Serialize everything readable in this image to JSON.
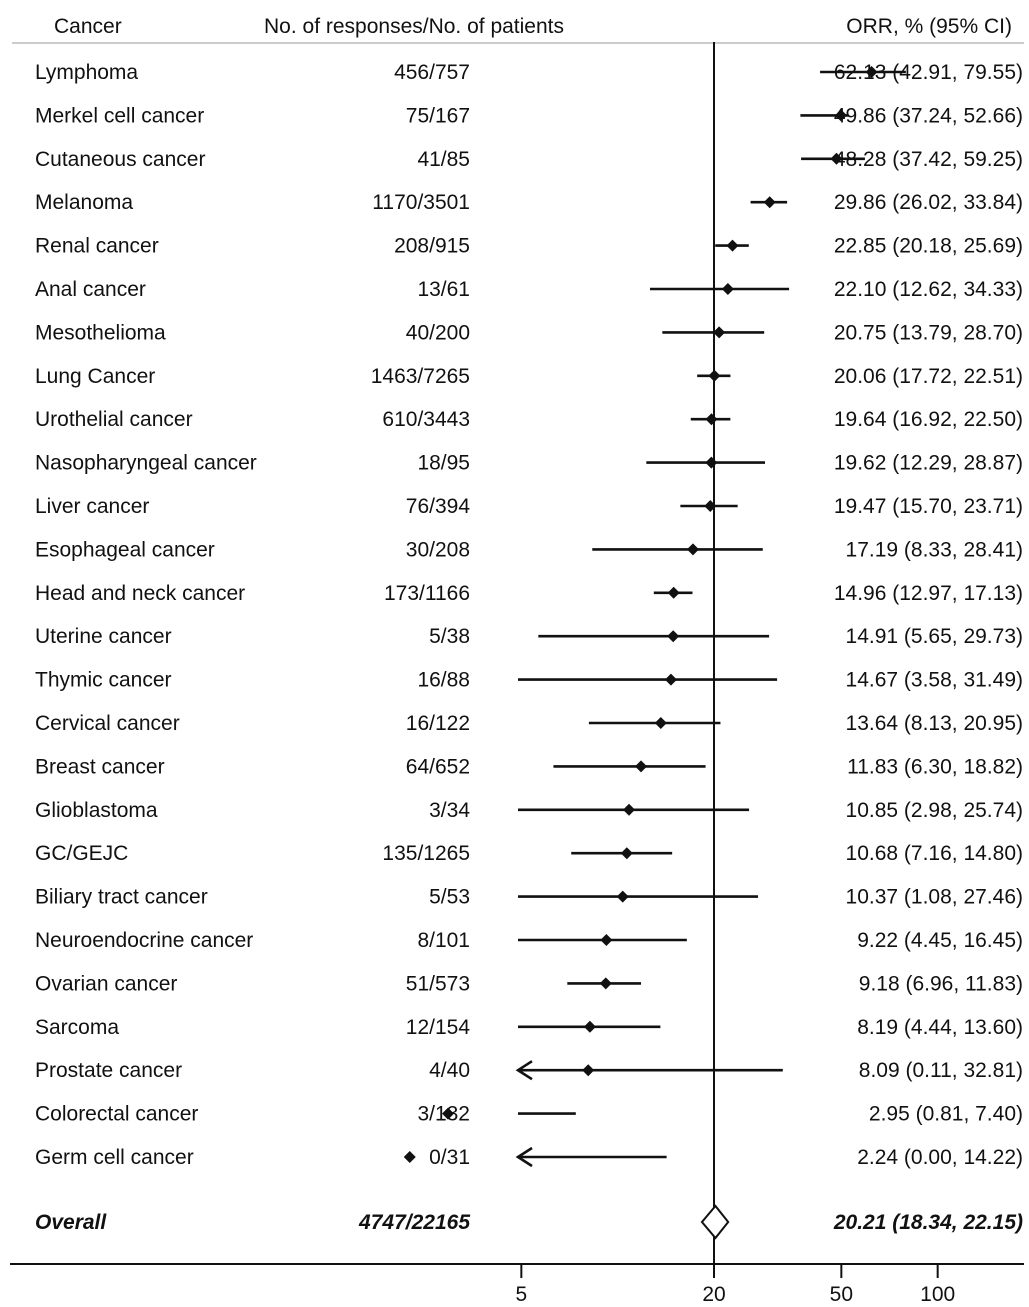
{
  "headers": {
    "cancer": "Cancer",
    "responses": "No. of responses/No. of patients",
    "orr": "ORR, % (95% CI)"
  },
  "chart_data": {
    "type": "forest",
    "x_scale": "log",
    "x_ticks": [
      5,
      20,
      50,
      100
    ],
    "reference_line": 20,
    "rows": [
      {
        "cancer": "Lymphoma",
        "responses": "456/757",
        "orr": 62.13,
        "lo": 42.91,
        "hi": 79.55,
        "label": "62.13 (42.91, 79.55)"
      },
      {
        "cancer": "Merkel cell cancer",
        "responses": "75/167",
        "orr": 49.86,
        "lo": 37.24,
        "hi": 52.66,
        "label": "49.86 (37.24, 52.66)"
      },
      {
        "cancer": "Cutaneous cancer",
        "responses": "41/85",
        "orr": 48.28,
        "lo": 37.42,
        "hi": 59.25,
        "label": "48.28 (37.42, 59.25)"
      },
      {
        "cancer": "Melanoma",
        "responses": "1170/3501",
        "orr": 29.86,
        "lo": 26.02,
        "hi": 33.84,
        "label": "29.86 (26.02, 33.84)"
      },
      {
        "cancer": "Renal cancer",
        "responses": "208/915",
        "orr": 22.85,
        "lo": 20.18,
        "hi": 25.69,
        "label": "22.85 (20.18, 25.69)"
      },
      {
        "cancer": "Anal cancer",
        "responses": "13/61",
        "orr": 22.1,
        "lo": 12.62,
        "hi": 34.33,
        "label": "22.10 (12.62, 34.33)"
      },
      {
        "cancer": "Mesothelioma",
        "responses": "40/200",
        "orr": 20.75,
        "lo": 13.79,
        "hi": 28.7,
        "label": "20.75 (13.79, 28.70)"
      },
      {
        "cancer": "Lung Cancer",
        "responses": "1463/7265",
        "orr": 20.06,
        "lo": 17.72,
        "hi": 22.51,
        "label": "20.06 (17.72, 22.51)"
      },
      {
        "cancer": "Urothelial cancer",
        "responses": "610/3443",
        "orr": 19.64,
        "lo": 16.92,
        "hi": 22.5,
        "label": "19.64 (16.92, 22.50)"
      },
      {
        "cancer": "Nasopharyngeal cancer",
        "responses": "18/95",
        "orr": 19.62,
        "lo": 12.29,
        "hi": 28.87,
        "label": "19.62 (12.29, 28.87)"
      },
      {
        "cancer": "Liver cancer",
        "responses": "76/394",
        "orr": 19.47,
        "lo": 15.7,
        "hi": 23.71,
        "label": "19.47 (15.70, 23.71)"
      },
      {
        "cancer": "Esophageal cancer",
        "responses": "30/208",
        "orr": 17.19,
        "lo": 8.33,
        "hi": 28.41,
        "label": "17.19 (8.33, 28.41)"
      },
      {
        "cancer": "Head and neck cancer",
        "responses": "173/1166",
        "orr": 14.96,
        "lo": 12.97,
        "hi": 17.13,
        "label": "14.96 (12.97, 17.13)"
      },
      {
        "cancer": "Uterine cancer",
        "responses": "5/38",
        "orr": 14.91,
        "lo": 5.65,
        "hi": 29.73,
        "label": "14.91 (5.65, 29.73)"
      },
      {
        "cancer": "Thymic cancer",
        "responses": "16/88",
        "orr": 14.67,
        "lo": 3.58,
        "hi": 31.49,
        "label": "14.67 (3.58, 31.49)"
      },
      {
        "cancer": "Cervical cancer",
        "responses": "16/122",
        "orr": 13.64,
        "lo": 8.13,
        "hi": 20.95,
        "label": "13.64 (8.13, 20.95)"
      },
      {
        "cancer": "Breast cancer",
        "responses": "64/652",
        "orr": 11.83,
        "lo": 6.3,
        "hi": 18.82,
        "label": "11.83 (6.30, 18.82)"
      },
      {
        "cancer": "Glioblastoma",
        "responses": "3/34",
        "orr": 10.85,
        "lo": 2.98,
        "hi": 25.74,
        "label": "10.85 (2.98, 25.74)"
      },
      {
        "cancer": "GC/GEJC",
        "responses": "135/1265",
        "orr": 10.68,
        "lo": 7.16,
        "hi": 14.8,
        "label": "10.68 (7.16, 14.80)"
      },
      {
        "cancer": "Biliary tract cancer",
        "responses": "5/53",
        "orr": 10.37,
        "lo": 1.08,
        "hi": 27.46,
        "label": "10.37 (1.08, 27.46)"
      },
      {
        "cancer": "Neuroendocrine cancer",
        "responses": "8/101",
        "orr": 9.22,
        "lo": 4.45,
        "hi": 16.45,
        "label": "9.22 (4.45, 16.45)"
      },
      {
        "cancer": "Ovarian cancer",
        "responses": "51/573",
        "orr": 9.18,
        "lo": 6.96,
        "hi": 11.83,
        "label": "9.18 (6.96, 11.83)"
      },
      {
        "cancer": "Sarcoma",
        "responses": "12/154",
        "orr": 8.19,
        "lo": 4.44,
        "hi": 13.6,
        "label": "8.19 (4.44, 13.60)"
      },
      {
        "cancer": "Prostate cancer",
        "responses": "4/40",
        "orr": 8.09,
        "lo": 0.11,
        "hi": 32.81,
        "label": "8.09 (0.11, 32.81)"
      },
      {
        "cancer": "Colorectal cancer",
        "responses": "3/132",
        "orr": 2.95,
        "lo": 0.81,
        "hi": 7.4,
        "label": "2.95 (0.81, 7.40)"
      },
      {
        "cancer": "Germ cell cancer",
        "responses": "0/31",
        "orr": 2.24,
        "lo": 0.0,
        "hi": 14.22,
        "label": "2.24 (0.00, 14.22)"
      }
    ],
    "overall": {
      "cancer": "Overall",
      "responses": "4747/22165",
      "orr": 20.21,
      "lo": 18.34,
      "hi": 22.15,
      "label": "20.21 (18.34, 22.15)"
    }
  }
}
